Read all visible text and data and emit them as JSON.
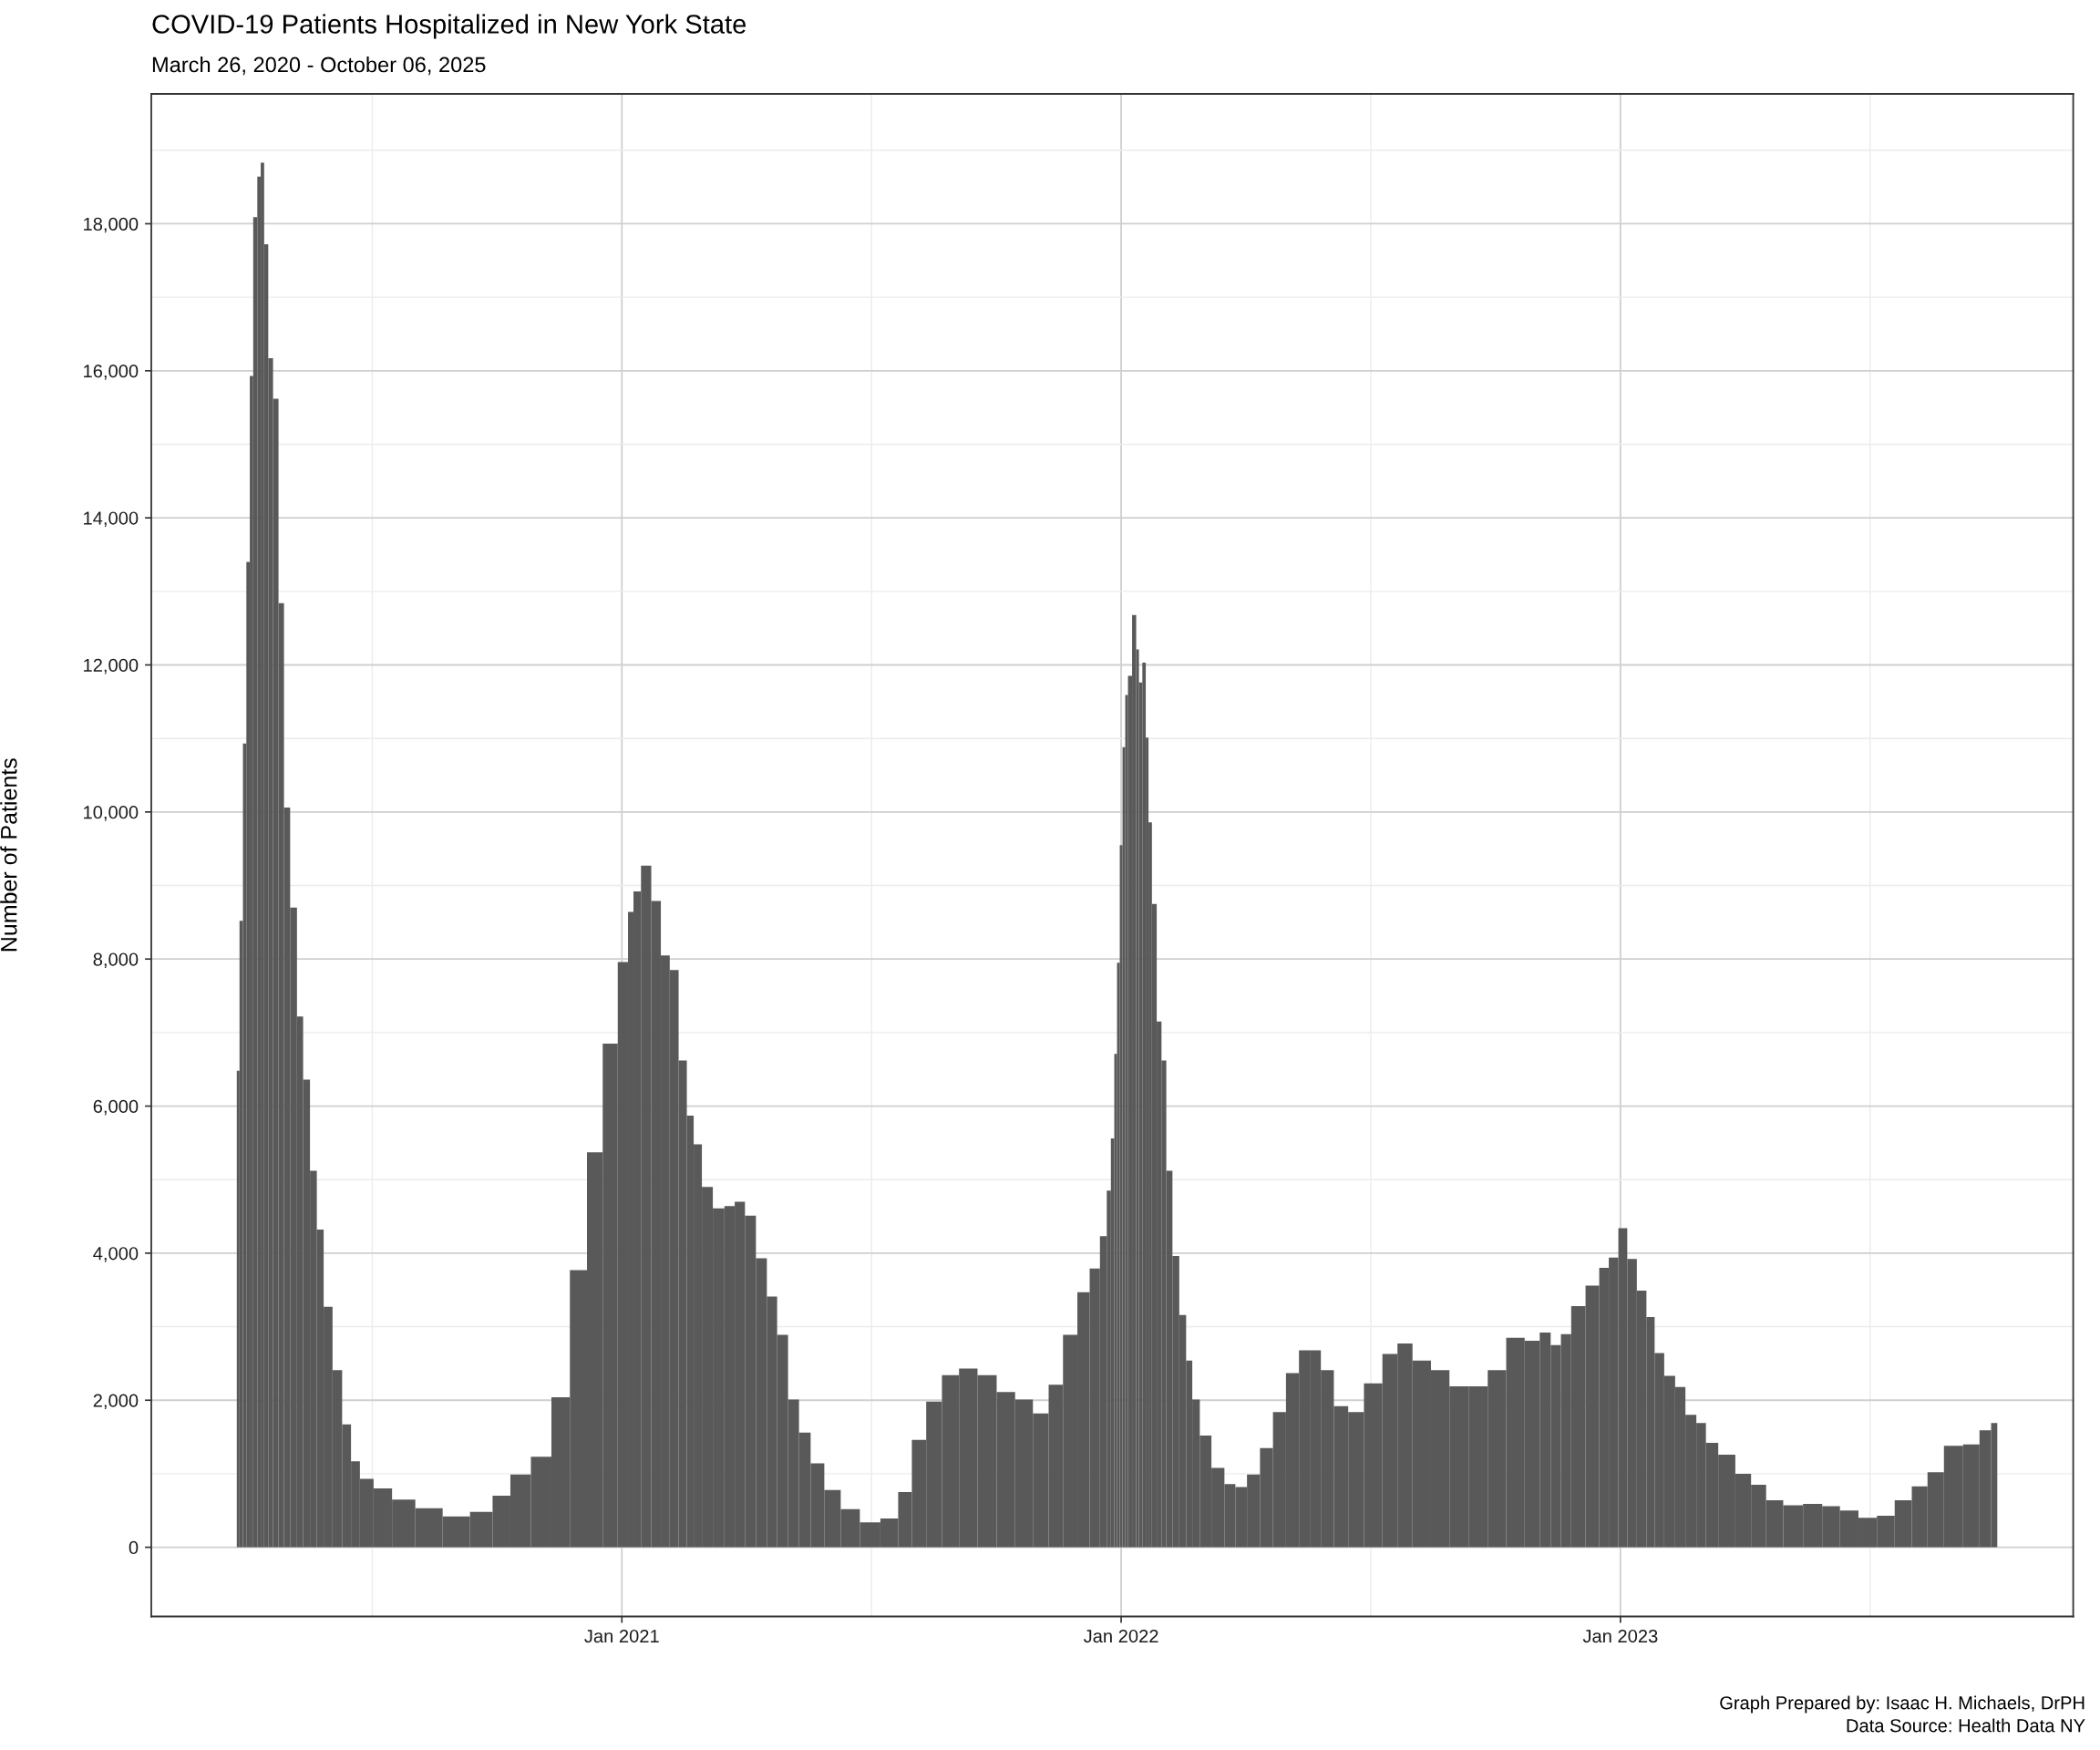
{
  "chart_data": {
    "type": "bar",
    "title": "COVID-19 Patients Hospitalized in New York State",
    "subtitle": "March 26, 2020 - October 06, 2025",
    "ylabel": "Number of Patients",
    "annotations": [
      "Graph Prepared by: Isaac H. Michaels, DrPH",
      "Data Source: Health Data NY"
    ],
    "x": [
      "2020-03-26",
      "2020-03-29",
      "2020-03-31",
      "2020-04-03",
      "2020-04-05",
      "2020-04-08",
      "2020-04-11",
      "2020-04-13",
      "2020-04-16",
      "2020-04-19",
      "2020-04-23",
      "2020-04-27",
      "2020-05-01",
      "2020-05-06",
      "2020-05-11",
      "2020-05-15",
      "2020-05-21",
      "2020-05-25",
      "2020-05-31",
      "2020-06-07",
      "2020-06-14",
      "2020-06-20",
      "2020-06-27",
      "2020-07-10",
      "2020-07-24",
      "2020-08-13",
      "2020-09-02",
      "2020-09-22",
      "2020-10-05",
      "2020-10-18",
      "2020-11-04",
      "2020-11-17",
      "2020-12-01",
      "2020-12-12",
      "2020-12-24",
      "2021-01-03",
      "2021-01-08",
      "2021-01-11",
      "2021-01-19",
      "2021-01-26",
      "2021-02-02",
      "2021-02-08",
      "2021-02-15",
      "2021-02-20",
      "2021-02-25",
      "2021-03-04",
      "2021-03-13",
      "2021-03-21",
      "2021-03-28",
      "2021-04-05",
      "2021-04-13",
      "2021-04-21",
      "2021-04-28",
      "2021-05-07",
      "2021-05-14",
      "2021-05-24",
      "2021-06-03",
      "2021-06-17",
      "2021-07-01",
      "2021-07-17",
      "2021-07-27",
      "2021-08-06",
      "2021-08-17",
      "2021-08-29",
      "2021-09-11",
      "2021-09-25",
      "2021-10-09",
      "2021-10-22",
      "2021-11-04",
      "2021-11-14",
      "2021-11-25",
      "2021-12-05",
      "2021-12-13",
      "2021-12-20",
      "2021-12-23",
      "2021-12-26",
      "2021-12-28",
      "2021-12-30",
      "2022-01-01",
      "2022-01-03",
      "2022-01-05",
      "2022-01-07",
      "2022-01-11",
      "2022-01-13",
      "2022-01-15",
      "2022-01-18",
      "2022-01-20",
      "2022-01-22",
      "2022-01-25",
      "2022-01-29",
      "2022-02-01",
      "2022-02-05",
      "2022-02-10",
      "2022-02-15",
      "2022-02-20",
      "2022-02-24",
      "2022-03-03",
      "2022-03-13",
      "2022-03-22",
      "2022-03-29",
      "2022-04-08",
      "2022-04-17",
      "2022-04-27",
      "2022-05-06",
      "2022-05-16",
      "2022-05-23",
      "2022-05-31",
      "2022-06-11",
      "2022-06-21",
      "2022-07-04",
      "2022-07-18",
      "2022-07-26",
      "2022-08-09",
      "2022-08-22",
      "2022-09-05",
      "2022-09-19",
      "2022-10-03",
      "2022-10-16",
      "2022-10-30",
      "2022-11-07",
      "2022-11-15",
      "2022-11-22",
      "2022-11-30",
      "2022-12-13",
      "2022-12-20",
      "2022-12-27",
      "2023-01-03",
      "2023-01-09",
      "2023-01-17",
      "2023-01-23",
      "2023-01-29",
      "2023-02-06",
      "2023-02-14",
      "2023-02-21",
      "2023-03-02",
      "2023-03-07",
      "2023-03-20",
      "2023-04-01",
      "2023-04-12",
      "2023-04-23",
      "2023-05-07",
      "2023-05-22",
      "2023-06-04",
      "2023-06-17",
      "2023-07-01",
      "2023-07-14",
      "2023-07-27",
      "2023-08-08",
      "2023-08-19",
      "2023-09-01",
      "2023-09-16",
      "2023-09-25",
      "2023-10-03"
    ],
    "values": [
      6480,
      8520,
      10930,
      13400,
      15930,
      18090,
      18640,
      18830,
      17720,
      16170,
      15620,
      12840,
      10060,
      8700,
      7220,
      6360,
      5120,
      4320,
      3270,
      2410,
      1670,
      1170,
      930,
      800,
      650,
      530,
      420,
      480,
      700,
      990,
      1230,
      2040,
      3770,
      5370,
      6850,
      7960,
      8640,
      8920,
      9270,
      8790,
      8050,
      7850,
      6620,
      5870,
      5480,
      4900,
      4610,
      4640,
      4700,
      4510,
      3930,
      3410,
      2890,
      2010,
      1560,
      1140,
      780,
      520,
      340,
      390,
      750,
      1460,
      1980,
      2340,
      2430,
      2340,
      2110,
      2010,
      1820,
      2210,
      2890,
      3470,
      3790,
      4230,
      4850,
      5560,
      6710,
      7950,
      9550,
      10880,
      11590,
      11850,
      12680,
      12210,
      11760,
      12030,
      11010,
      9860,
      8750,
      7150,
      6620,
      5120,
      3960,
      3160,
      2540,
      2010,
      1520,
      1080,
      860,
      820,
      990,
      1350,
      1840,
      2370,
      2680,
      2680,
      2410,
      1920,
      1840,
      2230,
      2630,
      2770,
      2540,
      2410,
      2190,
      2190,
      2410,
      2850,
      2810,
      2920,
      2750,
      2900,
      3280,
      3560,
      3800,
      3940,
      4340,
      3920,
      3490,
      3130,
      2640,
      2330,
      2180,
      1800,
      1690,
      1420,
      1260,
      1000,
      850,
      640,
      570,
      590,
      560,
      500,
      400,
      430,
      640,
      830,
      1020,
      1380,
      1400,
      1590,
      1690
    ],
    "color": "#595959",
    "xlim": [
      "2020-01-23",
      "2023-11-28"
    ],
    "xticks": [
      {
        "value": "2021-01-01",
        "label": "Jan 2021"
      },
      {
        "value": "2022-01-01",
        "label": "Jan 2022"
      },
      {
        "value": "2023-01-01",
        "label": "Jan 2023"
      }
    ],
    "ylim": [
      -941,
      19766
    ],
    "yticks": [
      0,
      {
        "value": 2000,
        "label": "2,000"
      },
      {
        "value": 4000,
        "label": "4,000"
      },
      {
        "value": 6000,
        "label": "6,000"
      },
      {
        "value": 8000,
        "label": "8,000"
      },
      {
        "value": 10000,
        "label": "10,000"
      },
      {
        "value": 12000,
        "label": "12,000"
      },
      {
        "value": 14000,
        "label": "14,000"
      },
      {
        "value": 16000,
        "label": "16,000"
      },
      {
        "value": 18000,
        "label": "18,000"
      }
    ],
    "grid": true
  }
}
